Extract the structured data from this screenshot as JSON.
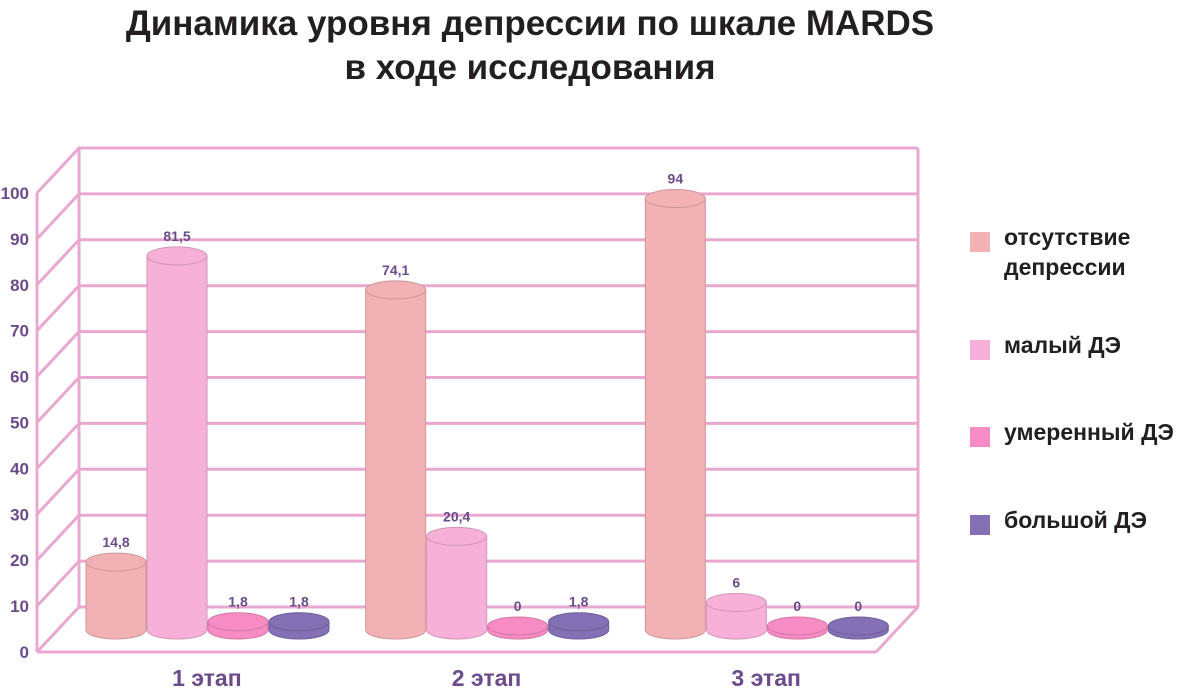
{
  "chart_data": {
    "type": "bar",
    "title": [
      "Динамика уровня депрессии по шкале MARDS",
      "в ходе исследования"
    ],
    "categories": [
      "1 этап",
      "2 этап",
      "3 этап"
    ],
    "ylim": [
      0,
      100
    ],
    "yticks": [
      0,
      10,
      20,
      30,
      40,
      50,
      60,
      70,
      80,
      90,
      100
    ],
    "grid": true,
    "legend_position": "right",
    "series": [
      {
        "name": [
          "отсутствие",
          "депрессии"
        ],
        "color": "#f2b1b4",
        "values": [
          14.8,
          74.1,
          94
        ],
        "labels": [
          "14,8",
          "74,1",
          "94"
        ]
      },
      {
        "name": [
          "малый ДЭ"
        ],
        "color": "#f7b0d8",
        "values": [
          81.5,
          20.4,
          6
        ],
        "labels": [
          "81,5",
          "20,4",
          "6"
        ]
      },
      {
        "name": [
          "умеренный ДЭ"
        ],
        "color": "#f68cc3",
        "values": [
          1.8,
          0,
          0
        ],
        "labels": [
          "1,8",
          "0",
          "0"
        ]
      },
      {
        "name": [
          "большой ДЭ"
        ],
        "color": "#8470b4",
        "values": [
          1.8,
          1.8,
          0
        ],
        "labels": [
          "1,8",
          "1,8",
          "0"
        ]
      }
    ],
    "gridline_color": "#e9a8d0",
    "axis_text_color": "#6b4b8a"
  }
}
